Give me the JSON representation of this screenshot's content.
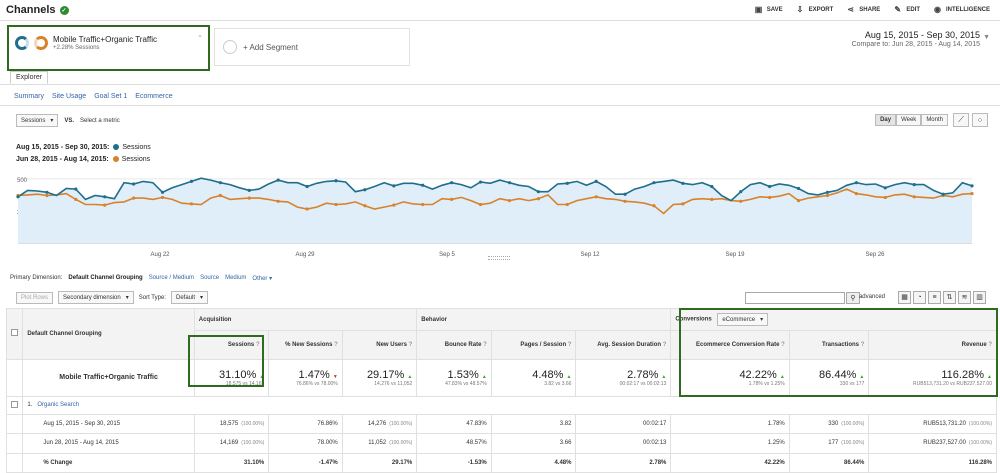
{
  "header": {
    "title": "Channels",
    "actions": [
      {
        "label": "SAVE",
        "icon": "save-icon"
      },
      {
        "label": "EXPORT",
        "icon": "export-icon"
      },
      {
        "label": "SHARE",
        "icon": "share-icon"
      },
      {
        "label": "EDIT",
        "icon": "edit-icon"
      },
      {
        "label": "INTELLIGENCE",
        "icon": "intelligence-icon"
      }
    ]
  },
  "segments": {
    "active_name": "Mobile Traffic+Organic Traffic",
    "active_sub": "+2.28% Sessions",
    "add_label": "+ Add Segment"
  },
  "daterange": {
    "main": "Aug 15, 2015 - Sep 30, 2015",
    "compare": "Compare to: Jun 28, 2015 - Aug 14, 2015"
  },
  "tabs": {
    "explorer": "Explorer",
    "subtabs": [
      "Summary",
      "Site Usage",
      "Goal Set 1",
      "Ecommerce"
    ]
  },
  "chart_controls": {
    "metric": "Sessions",
    "vs": "VS.",
    "select_metric": "Select a metric",
    "intervals": [
      "Day",
      "Week",
      "Month"
    ]
  },
  "legend": {
    "range1": "Aug 15, 2015 - Sep 30, 2015:",
    "range2": "Jun 28, 2015 - Aug 14, 2015:",
    "metric": "Sessions"
  },
  "colors": {
    "series1": "#1f6e8c",
    "series2": "#d9822b",
    "area": "#dfeef8",
    "highlight": "#2e6b1e"
  },
  "chart_data": {
    "type": "line",
    "y_ticks": [
      "500",
      "250"
    ],
    "ylim": [
      0,
      600
    ],
    "x_tick_labels": [
      "Aug 22",
      "Aug 29",
      "Sep 5",
      "Sep 12",
      "Sep 19",
      "Sep 26"
    ],
    "series": [
      {
        "name": "Sessions",
        "range": "Aug 15, 2015 - Sep 30, 2015",
        "values": [
          360,
          410,
          405,
          395,
          370,
          425,
          420,
          340,
          370,
          360,
          345,
          470,
          460,
          480,
          470,
          395,
          430,
          455,
          480,
          505,
          490,
          470,
          455,
          430,
          410,
          420,
          460,
          490,
          470,
          470,
          440,
          465,
          480,
          485,
          475,
          400,
          415,
          440,
          470,
          445,
          465,
          465,
          450,
          420,
          450,
          470,
          455,
          430,
          475,
          465,
          490,
          470,
          450,
          440,
          400,
          400,
          460,
          465,
          480,
          450,
          480,
          440,
          380,
          380,
          420,
          440,
          470,
          480,
          490,
          465,
          455,
          470,
          440,
          370,
          330,
          400,
          455,
          470,
          440,
          460,
          450,
          425,
          385,
          375,
          395,
          410,
          450,
          470,
          455,
          460,
          430,
          455,
          470,
          455,
          455,
          410,
          380,
          390,
          470,
          445
        ]
      },
      {
        "name": "Sessions",
        "range": "Jun 28, 2015 - Aug 14, 2015",
        "values": [
          370,
          375,
          380,
          370,
          375,
          385,
          340,
          300,
          300,
          295,
          315,
          320,
          350,
          350,
          340,
          355,
          340,
          310,
          305,
          300,
          350,
          370,
          340,
          345,
          350,
          350,
          340,
          325,
          320,
          280,
          265,
          280,
          310,
          300,
          305,
          320,
          290,
          265,
          280,
          295,
          320,
          305,
          300,
          300,
          345,
          340,
          355,
          330,
          300,
          310,
          345,
          330,
          345,
          330,
          345,
          375,
          300,
          300,
          330,
          345,
          360,
          345,
          340,
          325,
          320,
          310,
          290,
          230,
          300,
          305,
          340,
          345,
          340,
          345,
          330,
          325,
          340,
          360,
          355,
          365,
          385,
          330,
          350,
          360,
          370,
          390,
          420,
          385,
          375,
          360,
          355,
          375,
          380,
          360,
          355,
          350,
          370,
          360,
          380,
          385
        ]
      }
    ]
  },
  "primary_dimension": {
    "label": "Primary Dimension:",
    "active": "Default Channel Grouping",
    "options": [
      "Source / Medium",
      "Source",
      "Medium",
      "Other"
    ]
  },
  "table_controls": {
    "plot_rows": "Plot Rows",
    "secondary_dimension": "Secondary dimension",
    "sort_type_label": "Sort Type:",
    "sort_type": "Default",
    "advanced": "advanced"
  },
  "table": {
    "dimension_header": "Default Channel Grouping",
    "groups": {
      "acquisition": "Acquisition",
      "behavior": "Behavior",
      "conversions": "Conversions",
      "conversion_select": "eCommerce"
    },
    "columns": [
      "Sessions",
      "% New Sessions",
      "New Users",
      "Bounce Rate",
      "Pages / Session",
      "Avg. Session Duration",
      "Ecommerce Conversion Rate",
      "Transactions",
      "Revenue"
    ],
    "summary": {
      "label": "Mobile Traffic+Organic Traffic",
      "cells": [
        {
          "big": "31.10%",
          "small": "18,575 vs 14,169",
          "dir": "up"
        },
        {
          "big": "1.47%",
          "small": "76.86% vs 78.00%",
          "dir": "down"
        },
        {
          "big": "29.17%",
          "small": "14,276 vs 11,052",
          "dir": "up"
        },
        {
          "big": "1.53%",
          "small": "47.83% vs 48.57%",
          "dir": "up"
        },
        {
          "big": "4.48%",
          "small": "3.82 vs 3.66",
          "dir": "up"
        },
        {
          "big": "2.78%",
          "small": "00:02:17 vs 00:02:13",
          "dir": "up"
        },
        {
          "big": "42.22%",
          "small": "1.78% vs 1.25%",
          "dir": "up"
        },
        {
          "big": "86.44%",
          "small": "330 vs 177",
          "dir": "up"
        },
        {
          "big": "116.28%",
          "small": "RUB513,731.20 vs RUB237,527.00",
          "dir": "up"
        }
      ]
    },
    "group_row": {
      "index": "1.",
      "label": "Organic Search"
    },
    "rows": [
      {
        "label": "Aug 15, 2015 - Sep 30, 2015",
        "cells": [
          [
            "18,575",
            "(100.00%)"
          ],
          [
            "76.86%",
            ""
          ],
          [
            "14,276",
            "(100.00%)"
          ],
          [
            "47.83%",
            ""
          ],
          [
            "3.82",
            ""
          ],
          [
            "00:02:17",
            ""
          ],
          [
            "1.78%",
            ""
          ],
          [
            "330",
            "(100.00%)"
          ],
          [
            "RUB513,731.20",
            "(100.00%)"
          ]
        ]
      },
      {
        "label": "Jun 28, 2015 - Aug 14, 2015",
        "cells": [
          [
            "14,169",
            "(100.00%)"
          ],
          [
            "78.00%",
            ""
          ],
          [
            "11,052",
            "(100.00%)"
          ],
          [
            "48.57%",
            ""
          ],
          [
            "3.66",
            ""
          ],
          [
            "00:02:13",
            ""
          ],
          [
            "1.25%",
            ""
          ],
          [
            "177",
            "(100.00%)"
          ],
          [
            "RUB237,527.00",
            "(100.00%)"
          ]
        ]
      },
      {
        "label": "% Change",
        "cells": [
          [
            "31.10%",
            ""
          ],
          [
            "-1.47%",
            ""
          ],
          [
            "29.17%",
            ""
          ],
          [
            "-1.53%",
            ""
          ],
          [
            "4.48%",
            ""
          ],
          [
            "2.78%",
            ""
          ],
          [
            "42.22%",
            ""
          ],
          [
            "86.44%",
            ""
          ],
          [
            "116.28%",
            ""
          ]
        ]
      }
    ]
  }
}
